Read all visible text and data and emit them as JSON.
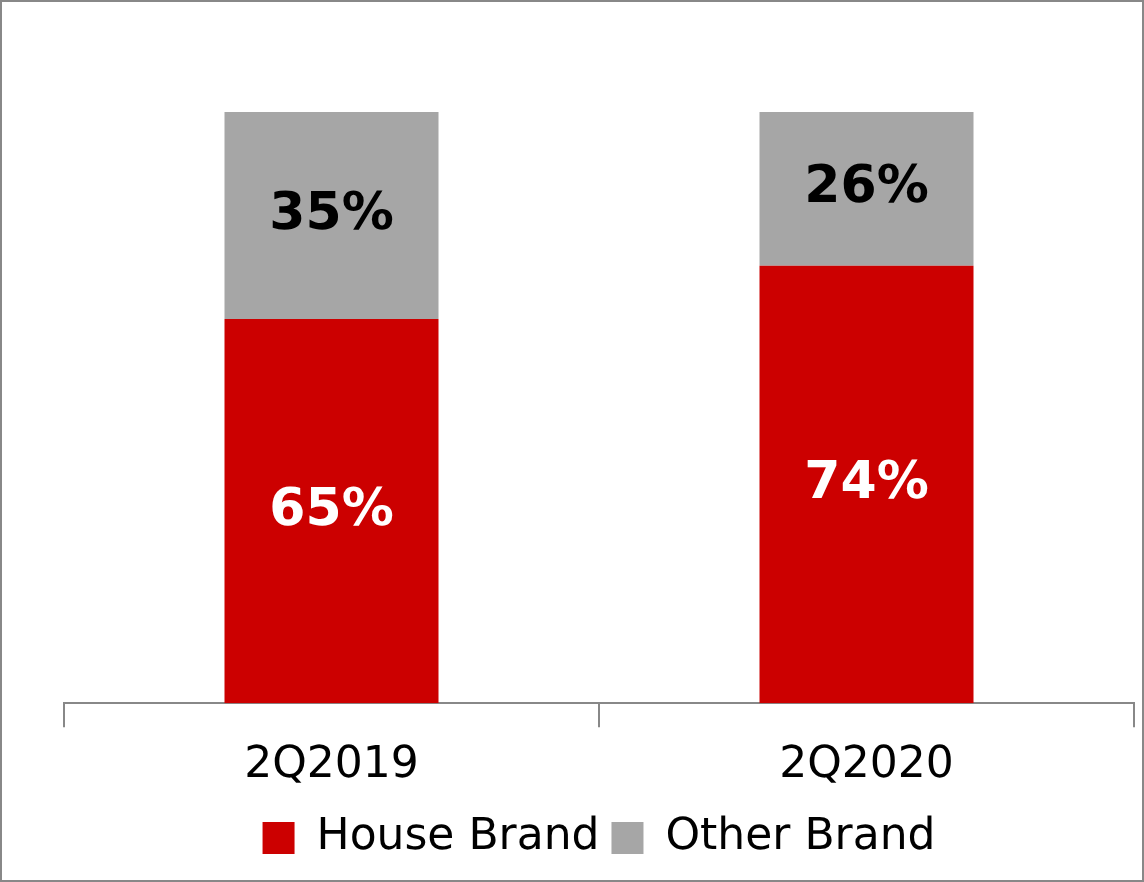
{
  "chart_data": {
    "type": "bar",
    "stacked": true,
    "categories": [
      "2Q2019",
      "2Q2020"
    ],
    "series": [
      {
        "name": "House Brand",
        "color": "#cc0000",
        "values": [
          65,
          74
        ],
        "value_labels": [
          "65%",
          "74%"
        ]
      },
      {
        "name": "Other Brand",
        "color": "#a6a6a6",
        "values": [
          35,
          26
        ],
        "value_labels": [
          "35%",
          "26%"
        ]
      }
    ],
    "legend": "bottom",
    "grid": false
  }
}
